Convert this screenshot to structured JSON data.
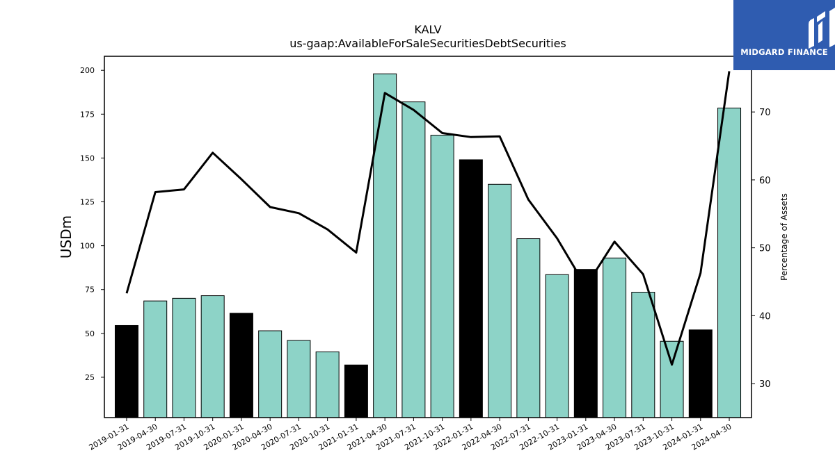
{
  "chart_data": {
    "type": "bar",
    "title": "KALV",
    "subtitle": "us-gaap:AvailableForSaleSecuritiesDebtSecurities",
    "ylabel": "USDm",
    "y2label": "Percentage of Assets",
    "categories": [
      "2019-01-31",
      "2019-04-30",
      "2019-07-31",
      "2019-10-31",
      "2020-01-31",
      "2020-04-30",
      "2020-07-31",
      "2020-10-31",
      "2021-01-31",
      "2021-04-30",
      "2021-07-31",
      "2021-10-31",
      "2022-01-31",
      "2022-04-30",
      "2022-07-31",
      "2022-10-31",
      "2023-01-31",
      "2023-04-30",
      "2023-07-31",
      "2023-10-31",
      "2024-01-31",
      "2024-04-30"
    ],
    "series": [
      {
        "values": [
          54.5,
          68.5,
          70,
          71.5,
          61.5,
          51.5,
          46,
          39.5,
          32,
          198,
          182,
          163,
          149,
          135,
          104,
          83.5,
          86.5,
          93,
          73.5,
          45.5,
          52,
          178.5
        ],
        "axis": "left"
      },
      {
        "values": [
          43.3,
          58.2,
          58.6,
          64,
          60.1,
          56,
          55.1,
          52.7,
          49.3,
          72.8,
          70.3,
          66.9,
          66.3,
          66.4,
          57.1,
          51.4,
          44.3,
          50.9,
          46.1,
          32.8,
          46.3,
          76
        ],
        "axis": "right"
      }
    ],
    "bar_colors": {
      "year_end": "#000000",
      "other": "#8dd3c7"
    },
    "black_bar_indices": [
      0,
      4,
      8,
      12,
      16,
      20
    ],
    "line_color": "#000000",
    "ylim": [
      2,
      208
    ],
    "y2lim": [
      25,
      78.2
    ],
    "yticks": [
      25,
      50,
      75,
      100,
      125,
      150,
      175,
      200
    ],
    "y2ticks": [
      30,
      40,
      50,
      60,
      70
    ],
    "grid": false
  },
  "logo": {
    "text": "MIDGARD FINANCE",
    "bg_color": "#2f5cb0"
  }
}
